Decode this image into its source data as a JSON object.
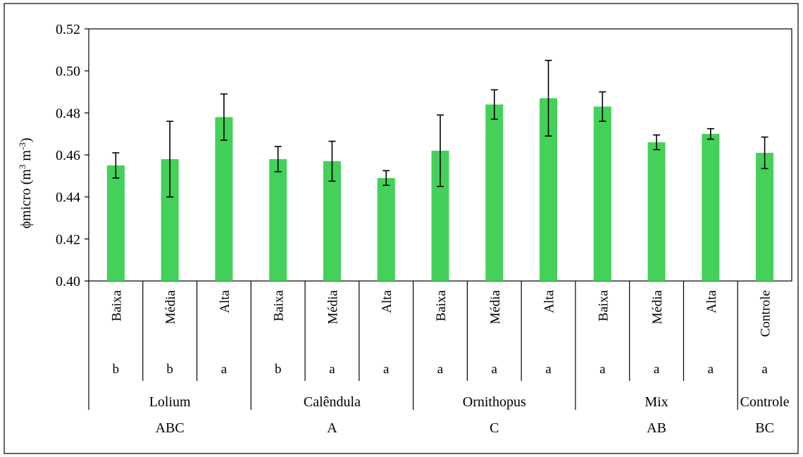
{
  "chart_data": {
    "type": "bar",
    "ylabel_main": "ϕmicro",
    "ylabel_unit_open": " (m",
    "ylabel_sup1": "3",
    "ylabel_unit_mid": " m",
    "ylabel_sup2": "-3",
    "ylabel_unit_close": ")",
    "ylim": [
      0.4,
      0.52
    ],
    "yticks": [
      "0.40",
      "0.42",
      "0.44",
      "0.46",
      "0.48",
      "0.50",
      "0.52"
    ],
    "ytick_values": [
      0.4,
      0.42,
      0.44,
      0.46,
      0.48,
      0.5,
      0.52
    ],
    "grid": false,
    "bar_color": "#44d15a",
    "categories": [
      "Baixa",
      "Média",
      "Alta",
      "Baixa",
      "Média",
      "Alta",
      "Baixa",
      "Média",
      "Alta",
      "Baixa",
      "Média",
      "Alta",
      "Controle"
    ],
    "values": [
      0.455,
      0.458,
      0.478,
      0.458,
      0.457,
      0.449,
      0.462,
      0.484,
      0.487,
      0.483,
      0.466,
      0.47,
      0.461
    ],
    "errors": [
      0.006,
      0.018,
      0.011,
      0.006,
      0.0095,
      0.0035,
      0.017,
      0.007,
      0.018,
      0.007,
      0.0035,
      0.0025,
      0.0075
    ],
    "letters": [
      "b",
      "b",
      "a",
      "b",
      "a",
      "a",
      "a",
      "a",
      "a",
      "a",
      "a",
      "a",
      "a"
    ],
    "groups": [
      {
        "name": "Lolium",
        "letter": "ABC",
        "size": 3
      },
      {
        "name": "Calêndula",
        "letter": "A",
        "size": 3
      },
      {
        "name": "Ornithopus",
        "letter": "C",
        "size": 3
      },
      {
        "name": "Mix",
        "letter": "AB",
        "size": 3
      },
      {
        "name": "Controle",
        "letter": "BC",
        "size": 1
      }
    ]
  }
}
